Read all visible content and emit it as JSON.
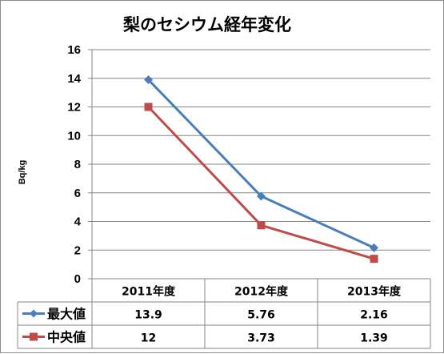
{
  "chart_data": {
    "type": "line",
    "title": "梨のセシウム経年変化",
    "ylabel": "Bq/kg",
    "xlabel": "",
    "categories": [
      "2011年度",
      "2012年度",
      "2013年度"
    ],
    "ylim": [
      0,
      16
    ],
    "yticks": [
      0,
      2,
      4,
      6,
      8,
      10,
      12,
      14,
      16
    ],
    "grid": "horizontal",
    "legend": "data-table-left",
    "series": [
      {
        "name": "最大値",
        "values": [
          13.9,
          5.76,
          2.16
        ],
        "value_labels": [
          "13.9",
          "5.76",
          "2.16"
        ],
        "color": "#4a7ebb",
        "marker": "diamond"
      },
      {
        "name": "中央値",
        "values": [
          12,
          3.73,
          1.39
        ],
        "value_labels": [
          "12",
          "3.73",
          "1.39"
        ],
        "color": "#be4b48",
        "marker": "square"
      }
    ]
  },
  "colors": {
    "gridline": "#868686",
    "axis": "#868686",
    "frame": "#8c8c8c"
  }
}
